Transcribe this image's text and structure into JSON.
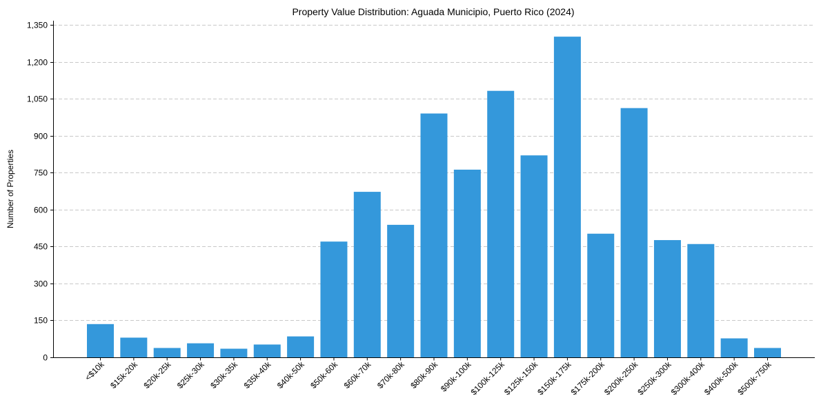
{
  "chart_data": {
    "type": "bar",
    "title": "Property Value Distribution: Aguada Municipio, Puerto Rico (2024)",
    "xlabel": "",
    "ylabel": "Number of Properties",
    "ylim": [
      0,
      1350
    ],
    "yticks": [
      0,
      150,
      300,
      450,
      600,
      750,
      900,
      1050,
      1200,
      1350
    ],
    "ytick_labels": [
      "0",
      "150",
      "300",
      "450",
      "600",
      "750",
      "900",
      "1,050",
      "1,200",
      "1,350"
    ],
    "grid": "y-dashed",
    "bar_color": "#3498db",
    "categories": [
      "<$10k",
      "$15k-20k",
      "$20k-25k",
      "$25k-30k",
      "$30k-35k",
      "$35k-40k",
      "$40k-50k",
      "$50k-60k",
      "$60k-70k",
      "$70k-80k",
      "$80k-90k",
      "$90k-100k",
      "$100k-125k",
      "$125k-150k",
      "$150k-175k",
      "$175k-200k",
      "$200k-250k",
      "$250k-300k",
      "$300k-400k",
      "$400k-500k",
      "$500k-750k"
    ],
    "values": [
      135,
      80,
      38,
      57,
      35,
      52,
      85,
      470,
      672,
      538,
      990,
      762,
      1082,
      820,
      1302,
      502,
      1012,
      476,
      460,
      77,
      38
    ]
  }
}
